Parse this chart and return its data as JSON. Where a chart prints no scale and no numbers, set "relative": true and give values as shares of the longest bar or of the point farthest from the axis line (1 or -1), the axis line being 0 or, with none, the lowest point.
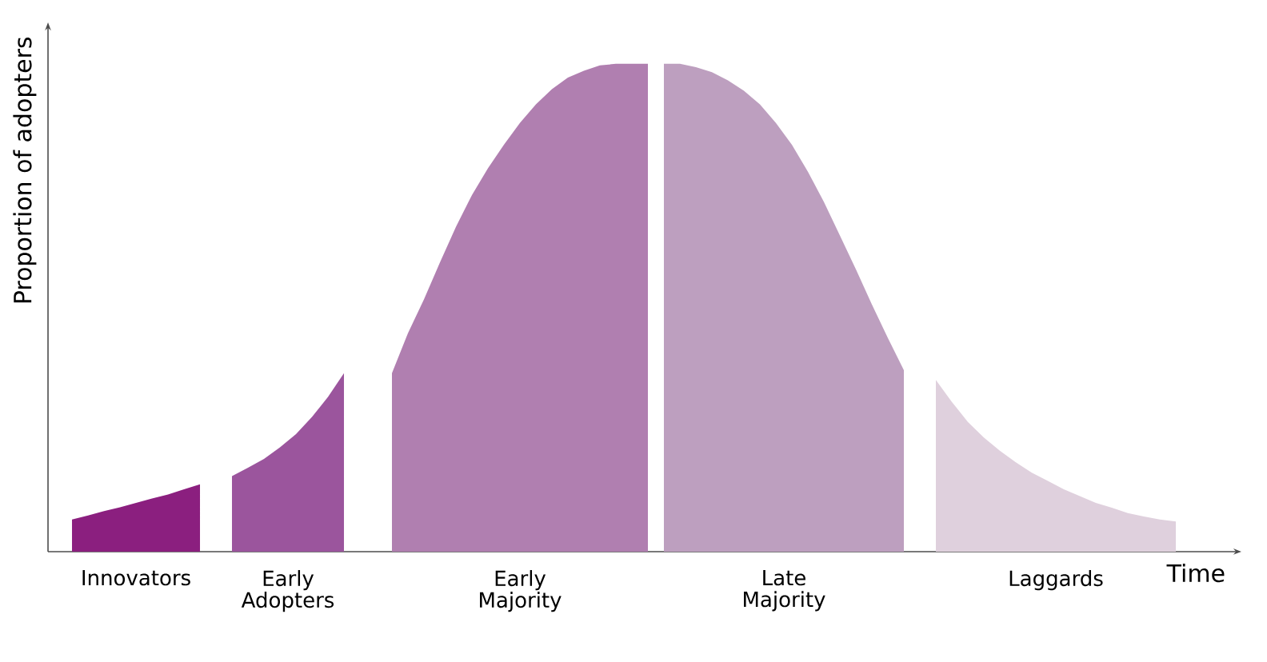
{
  "chart_data": {
    "type": "area",
    "relative": true,
    "xlabel": "Time",
    "ylabel": "Proportion of adopters",
    "tick_labels": false,
    "categories": [
      null,
      null,
      null,
      null,
      null,
      null,
      null,
      null,
      null,
      null,
      null,
      null,
      null,
      null,
      null,
      null,
      null,
      null,
      null,
      null,
      null,
      null,
      null,
      null,
      null,
      null,
      null,
      null,
      null,
      null,
      null,
      null,
      null,
      null,
      null,
      null,
      null,
      null,
      null,
      null,
      null,
      null,
      null,
      null,
      null,
      null,
      null,
      null,
      null,
      null,
      null,
      null,
      null,
      null,
      null,
      null,
      null,
      null,
      null,
      null,
      null,
      null,
      null,
      null,
      null,
      null,
      null,
      null,
      null,
      null
    ],
    "series": [
      {
        "name": "Innovators",
        "color": "#8b1f7f",
        "values": [
          0.066,
          0.074,
          0.083,
          0.091,
          0.1,
          0.109,
          0.117,
          0.128,
          0.138,
          null,
          null,
          null,
          null,
          null,
          null,
          null,
          null,
          null,
          null,
          null,
          null,
          null,
          null,
          null,
          null,
          null,
          null,
          null,
          null,
          null,
          null,
          null,
          null,
          null,
          null,
          null,
          null,
          null,
          null,
          null,
          null,
          null,
          null,
          null,
          null,
          null,
          null,
          null,
          null,
          null,
          null,
          null,
          null,
          null,
          null,
          null,
          null,
          null,
          null,
          null,
          null,
          null,
          null,
          null,
          null,
          null,
          null,
          null,
          null,
          null
        ]
      },
      {
        "name": "Early Adopters",
        "color": "#9b559d",
        "values": [
          null,
          null,
          null,
          null,
          null,
          null,
          null,
          null,
          null,
          null,
          0.155,
          0.172,
          0.19,
          0.214,
          0.241,
          0.276,
          0.317,
          0.366,
          null,
          null,
          null,
          null,
          null,
          null,
          null,
          null,
          null,
          null,
          null,
          null,
          null,
          null,
          null,
          null,
          null,
          null,
          null,
          null,
          null,
          null,
          null,
          null,
          null,
          null,
          null,
          null,
          null,
          null,
          null,
          null,
          null,
          null,
          null,
          null,
          null,
          null,
          null,
          null,
          null,
          null,
          null,
          null,
          null,
          null,
          null,
          null,
          null,
          null,
          null,
          null
        ]
      },
      {
        "name": "Early Majority",
        "color": "#b07fb0",
        "values": [
          null,
          null,
          null,
          null,
          null,
          null,
          null,
          null,
          null,
          null,
          null,
          null,
          null,
          null,
          null,
          null,
          null,
          null,
          null,
          null,
          0.366,
          0.448,
          0.517,
          0.593,
          0.666,
          0.731,
          0.786,
          0.834,
          0.879,
          0.917,
          0.948,
          0.972,
          0.986,
          0.997,
          1,
          1,
          1,
          null,
          null,
          null,
          null,
          null,
          null,
          null,
          null,
          null,
          null,
          null,
          null,
          null,
          null,
          null,
          null,
          null,
          null,
          null,
          null,
          null,
          null,
          null,
          null,
          null,
          null,
          null,
          null,
          null,
          null,
          null,
          null,
          null
        ]
      },
      {
        "name": "Late Majority",
        "color": "#bd9fbf",
        "values": [
          null,
          null,
          null,
          null,
          null,
          null,
          null,
          null,
          null,
          null,
          null,
          null,
          null,
          null,
          null,
          null,
          null,
          null,
          null,
          null,
          null,
          null,
          null,
          null,
          null,
          null,
          null,
          null,
          null,
          null,
          null,
          null,
          null,
          null,
          null,
          null,
          null,
          1,
          1,
          0.993,
          0.983,
          0.966,
          0.945,
          0.917,
          0.879,
          0.834,
          0.779,
          0.717,
          0.648,
          0.579,
          0.507,
          0.438,
          0.372,
          null,
          null,
          null,
          null,
          null,
          null,
          null,
          null,
          null,
          null,
          null,
          null,
          null,
          null,
          null,
          null,
          null
        ]
      },
      {
        "name": "Laggards",
        "color": "#dfd0dd",
        "values": [
          null,
          null,
          null,
          null,
          null,
          null,
          null,
          null,
          null,
          null,
          null,
          null,
          null,
          null,
          null,
          null,
          null,
          null,
          null,
          null,
          null,
          null,
          null,
          null,
          null,
          null,
          null,
          null,
          null,
          null,
          null,
          null,
          null,
          null,
          null,
          null,
          null,
          null,
          null,
          null,
          null,
          null,
          null,
          null,
          null,
          null,
          null,
          null,
          null,
          null,
          null,
          null,
          null,
          null,
          0.352,
          0.307,
          0.266,
          0.234,
          0.207,
          0.183,
          0.162,
          0.145,
          0.128,
          0.114,
          0.1,
          0.09,
          0.079,
          0.072,
          0.066,
          0.062
        ]
      }
    ]
  }
}
